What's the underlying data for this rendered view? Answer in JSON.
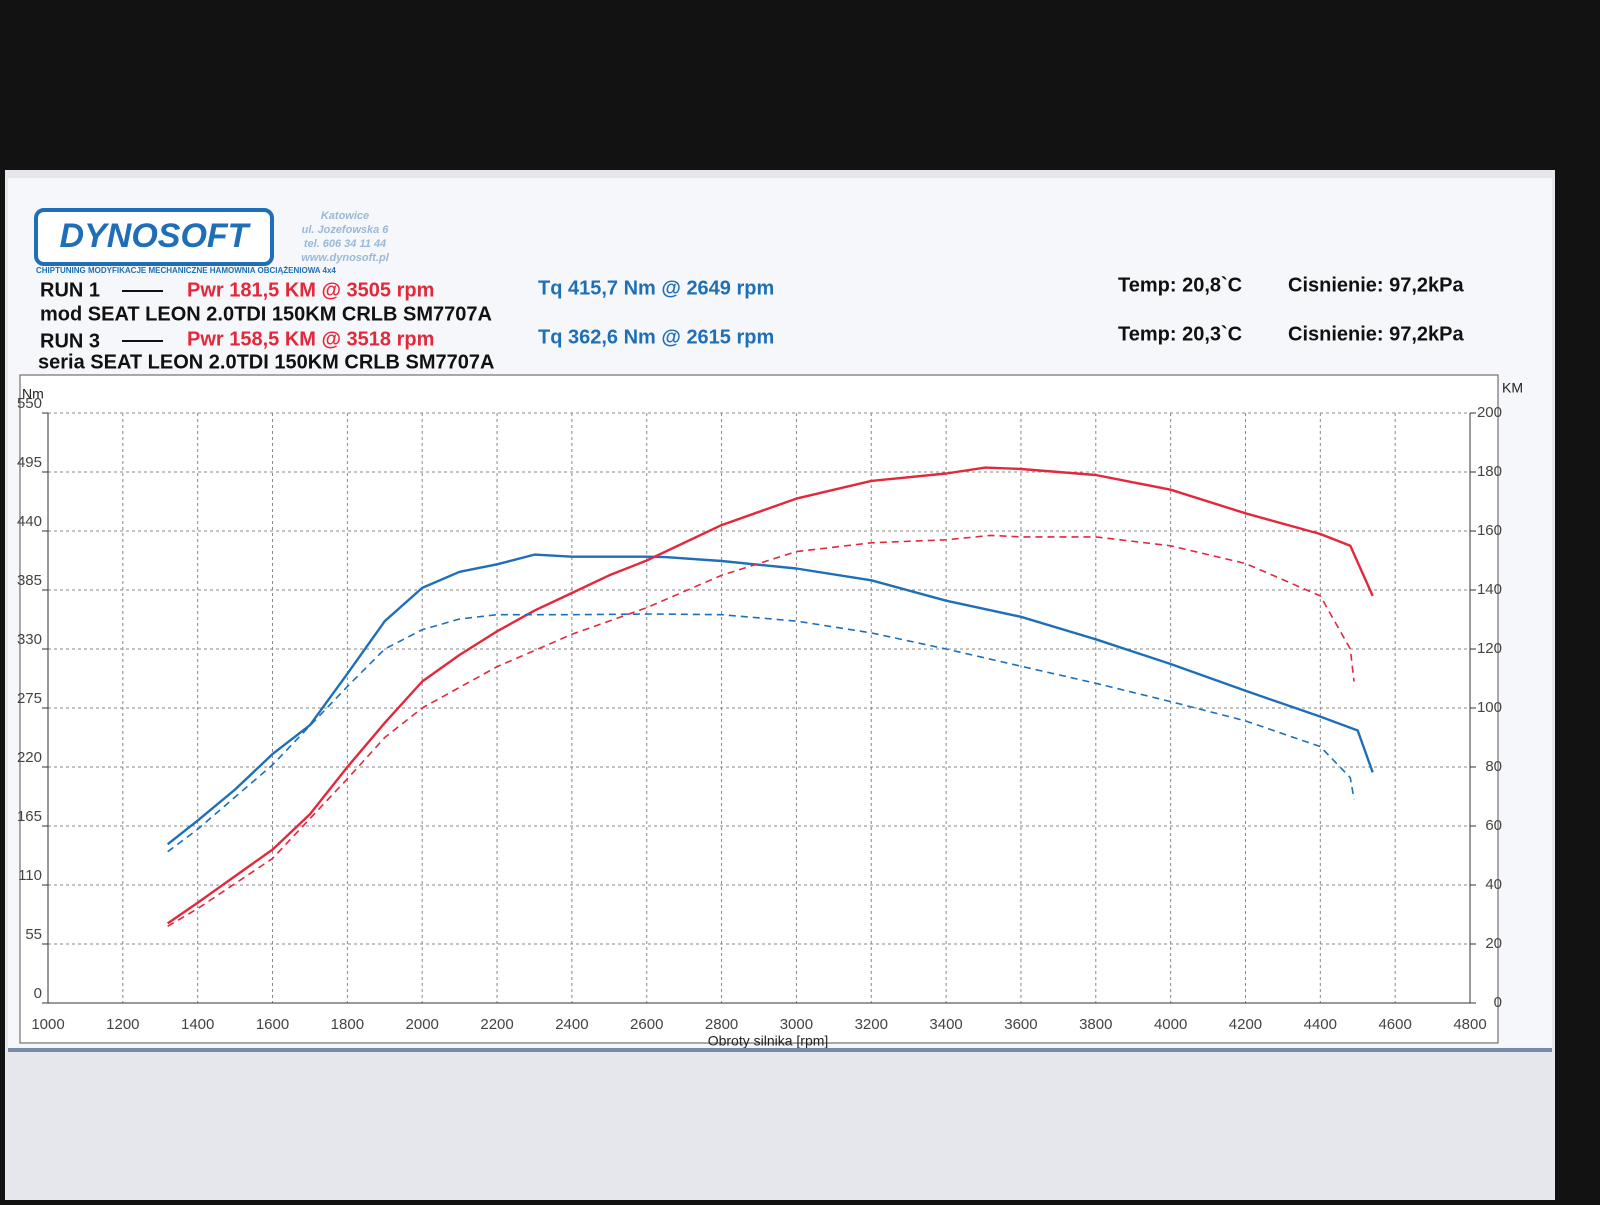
{
  "header": {
    "logo": "DYNOSOFT",
    "tagline": "CHIPTUNING  MODYFIKACJE MECHANICZNE  HAMOWNIA OBCIĄŻENIOWA 4x4",
    "address": [
      "Katowice",
      "ul. Jozefowska 6",
      "tel. 606 34 11 44",
      "www.dynosoft.pl"
    ]
  },
  "chart_data": {
    "type": "line",
    "runs": [
      {
        "label": "RUN 1",
        "power": "Pwr  181,5 KM @ 3505 rpm",
        "torque": "Tq 415,7 Nm @ 2649 rpm",
        "temp": "Temp: 20,8`C",
        "pressure": "Cisnienie: 97,2kPa",
        "description": "mod SEAT LEON 2.0TDI 150KM CRLB SM7707A"
      },
      {
        "label": "RUN 3",
        "power": "Pwr  158,5 KM @ 3518 rpm",
        "torque": "Tq 362,6 Nm @ 2615 rpm",
        "temp": "Temp: 20,3`C",
        "pressure": "Cisnienie: 97,2kPa",
        "description": "seria SEAT LEON 2.0TDI 150KM CRLB SM7707A"
      }
    ],
    "ylabel": "Nm",
    "y2label": "KM",
    "xlabel": "Obroty silnika [rpm]",
    "xlim": [
      1000,
      4800
    ],
    "xticks": [
      1000,
      1200,
      1400,
      1600,
      1800,
      2000,
      2200,
      2400,
      2600,
      2800,
      3000,
      3200,
      3400,
      3600,
      3800,
      4000,
      4200,
      4400,
      4600,
      4800
    ],
    "ylim": [
      0,
      550
    ],
    "yticks": [
      0,
      55,
      110,
      165,
      220,
      275,
      330,
      385,
      440,
      495,
      550
    ],
    "y2lim": [
      0,
      200
    ],
    "y2ticks": [
      0,
      20,
      40,
      60,
      80,
      100,
      120,
      140,
      160,
      180,
      200
    ],
    "grid": true,
    "series": [
      {
        "color": "#1e6fb8",
        "line_style": "solid",
        "x": [
          1320,
          1400,
          1500,
          1600,
          1700,
          1800,
          1900,
          2000,
          2100,
          2200,
          2300,
          2400,
          2600,
          2649,
          2800,
          3000,
          3200,
          3400,
          3600,
          3800,
          4000,
          4200,
          4400,
          4500,
          4540
        ],
        "values": [
          148,
          170,
          199,
          232,
          259,
          307,
          356,
          387,
          402,
          409,
          418,
          416,
          416,
          415.7,
          412,
          405,
          394,
          375,
          360,
          339,
          316,
          291,
          267,
          254,
          215
        ]
      },
      {
        "color": "#e3283c",
        "line_style": "solid",
        "axis": "y2",
        "x": [
          1320,
          1400,
          1500,
          1600,
          1700,
          1800,
          1900,
          2000,
          2100,
          2200,
          2300,
          2400,
          2500,
          2600,
          2800,
          3000,
          3200,
          3400,
          3505,
          3600,
          3800,
          4000,
          4200,
          4400,
          4480,
          4540
        ],
        "values": [
          27,
          34,
          43,
          52,
          64,
          80,
          95,
          109,
          118,
          126,
          133,
          139,
          145,
          150,
          162,
          171,
          177,
          179.5,
          181.5,
          181,
          179,
          174,
          166,
          159,
          155,
          138
        ]
      },
      {
        "color": "#1e6fb8",
        "line_style": "dashed",
        "x": [
          1320,
          1400,
          1600,
          1800,
          1900,
          2000,
          2100,
          2200,
          2400,
          2615,
          2800,
          3000,
          3200,
          3400,
          3600,
          3800,
          4000,
          4200,
          4400,
          4480,
          4490
        ],
        "values": [
          141,
          162,
          222,
          295,
          330,
          348,
          358,
          362,
          362,
          362.6,
          362,
          356,
          345,
          330,
          314,
          298,
          281,
          263,
          239,
          210,
          190
        ]
      },
      {
        "color": "#e3283c",
        "line_style": "dashed",
        "axis": "y2",
        "x": [
          1320,
          1400,
          1600,
          1800,
          1900,
          2000,
          2200,
          2400,
          2600,
          2800,
          3000,
          3200,
          3400,
          3518,
          3600,
          3800,
          4000,
          4200,
          4400,
          4480,
          4490
        ],
        "values": [
          26,
          32,
          49,
          76,
          90,
          100,
          114,
          125,
          134,
          145,
          153,
          156,
          157,
          158.5,
          158,
          158,
          155,
          149,
          138,
          120,
          109
        ]
      }
    ]
  }
}
